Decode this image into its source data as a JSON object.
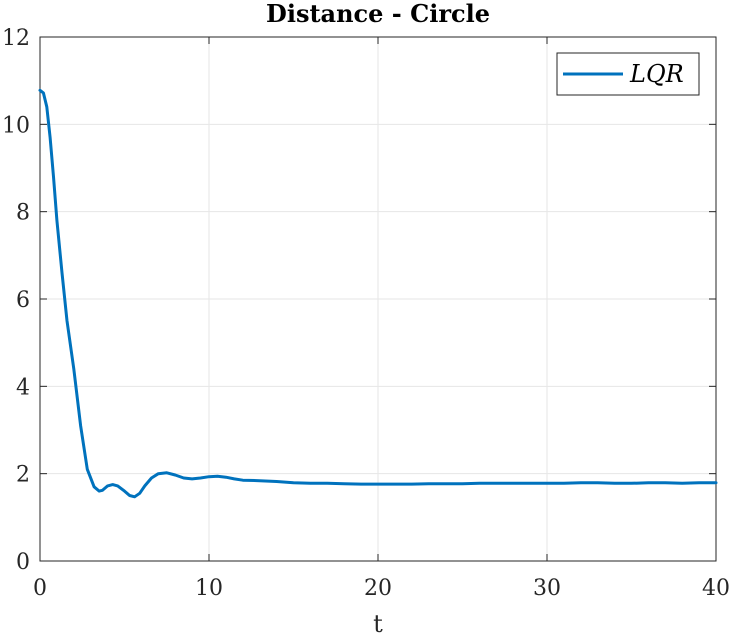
{
  "chart_data": {
    "type": "line",
    "title": "Distance - Circle",
    "xlabel": "t",
    "ylabel": "",
    "xlim": [
      0,
      40
    ],
    "ylim": [
      0,
      12
    ],
    "xticks": [
      0,
      10,
      20,
      30,
      40
    ],
    "yticks": [
      0,
      2,
      4,
      6,
      8,
      10,
      12
    ],
    "grid": true,
    "legend_position": "top-right",
    "series": [
      {
        "name": "LQR",
        "color": "#0072BD",
        "x": [
          0,
          0.2,
          0.4,
          0.6,
          0.8,
          1.0,
          1.3,
          1.6,
          2.0,
          2.4,
          2.8,
          3.2,
          3.5,
          3.7,
          4.0,
          4.3,
          4.6,
          5.0,
          5.3,
          5.6,
          5.9,
          6.2,
          6.6,
          7.0,
          7.5,
          8.0,
          8.5,
          9.0,
          9.5,
          10.0,
          10.5,
          11.0,
          11.5,
          12.0,
          13.0,
          14.0,
          15.0,
          16.0,
          17.0,
          18.0,
          19.0,
          20.0,
          21.0,
          22.0,
          23.0,
          24.0,
          25.0,
          26.0,
          27.0,
          28.0,
          29.0,
          30.0,
          31.0,
          32.0,
          33.0,
          34.0,
          35.0,
          36.0,
          37.0,
          38.0,
          39.0,
          40.0
        ],
        "y": [
          10.78,
          10.72,
          10.4,
          9.7,
          8.8,
          7.8,
          6.6,
          5.5,
          4.4,
          3.1,
          2.1,
          1.7,
          1.6,
          1.62,
          1.72,
          1.75,
          1.72,
          1.6,
          1.5,
          1.47,
          1.55,
          1.72,
          1.9,
          2.0,
          2.02,
          1.97,
          1.9,
          1.88,
          1.9,
          1.93,
          1.94,
          1.92,
          1.88,
          1.85,
          1.84,
          1.82,
          1.79,
          1.78,
          1.78,
          1.77,
          1.76,
          1.76,
          1.76,
          1.76,
          1.77,
          1.77,
          1.77,
          1.78,
          1.78,
          1.78,
          1.78,
          1.78,
          1.78,
          1.79,
          1.79,
          1.78,
          1.78,
          1.79,
          1.79,
          1.78,
          1.79,
          1.79
        ]
      }
    ]
  }
}
